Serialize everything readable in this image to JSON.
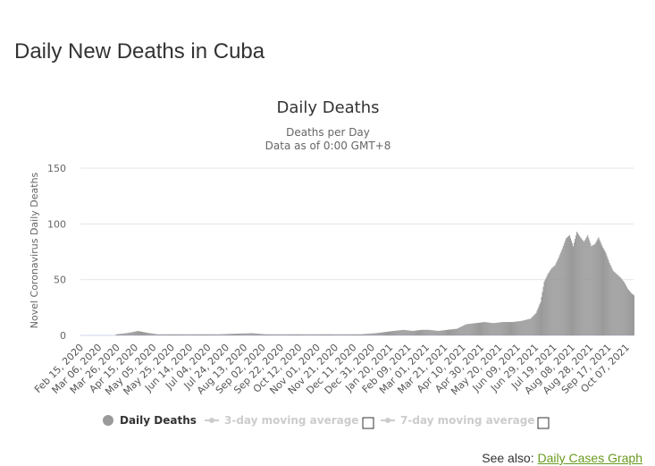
{
  "page": {
    "title": "Daily New Deaths in Cuba",
    "see_also_label": "See also:",
    "see_also_link": "Daily Cases Graph"
  },
  "chart_data": {
    "type": "bar",
    "title": "Daily Deaths",
    "subtitle_line1": "Deaths per Day",
    "subtitle_line2": "Data as of 0:00 GMT+8",
    "ylabel": "Novel Coronavirus Daily Deaths",
    "xlabel": "",
    "ylim": [
      0,
      150
    ],
    "yticks": [
      0,
      50,
      100,
      150
    ],
    "x_start": "2020-02-15",
    "x_end": "2021-10-17",
    "x_tick_labels": [
      "Feb 15, 2020",
      "Mar 06, 2020",
      "Mar 26, 2020",
      "Apr 15, 2020",
      "May 05, 2020",
      "May 25, 2020",
      "Jun 14, 2020",
      "Jul 04, 2020",
      "Jul 24, 2020",
      "Aug 13, 2020",
      "Sep 02, 2020",
      "Sep 22, 2020",
      "Oct 12, 2020",
      "Nov 01, 2020",
      "Nov 21, 2020",
      "Dec 11, 2020",
      "Dec 31, 2020",
      "Jan 20, 2021",
      "Feb 09, 2021",
      "Mar 01, 2021",
      "Mar 21, 2021",
      "Apr 10, 2021",
      "Apr 30, 2021",
      "May 20, 2021",
      "Jun 09, 2021",
      "Jun 29, 2021",
      "Jul 19, 2021",
      "Aug 08, 2021",
      "Aug 28, 2021",
      "Sep 17, 2021",
      "Oct 07, 2021"
    ],
    "grid": true,
    "legend_position": "bottom",
    "colors": {
      "bars": "#9a9a9a",
      "grid": "#e6e6e6",
      "legend_inactive": "#cccccc",
      "link": "#6a9a1f"
    },
    "series": [
      {
        "name": "Daily Deaths",
        "visible": true,
        "x": [
          "2020-03-25",
          "2020-04-05",
          "2020-04-12",
          "2020-04-18",
          "2020-04-24",
          "2020-05-01",
          "2020-05-10",
          "2020-07-15",
          "2020-08-22",
          "2020-09-05",
          "2020-10-10",
          "2020-12-08",
          "2020-12-20",
          "2021-01-05",
          "2021-01-15",
          "2021-01-25",
          "2021-02-05",
          "2021-02-15",
          "2021-02-25",
          "2021-03-05",
          "2021-03-15",
          "2021-03-25",
          "2021-04-05",
          "2021-04-15",
          "2021-04-25",
          "2021-05-05",
          "2021-05-15",
          "2021-05-25",
          "2021-06-05",
          "2021-06-15",
          "2021-06-25",
          "2021-07-01",
          "2021-07-06",
          "2021-07-10",
          "2021-07-14",
          "2021-07-18",
          "2021-07-22",
          "2021-07-26",
          "2021-07-30",
          "2021-08-03",
          "2021-08-07",
          "2021-08-11",
          "2021-08-15",
          "2021-08-19",
          "2021-08-23",
          "2021-08-27",
          "2021-08-31",
          "2021-09-04",
          "2021-09-08",
          "2021-09-12",
          "2021-09-16",
          "2021-09-20",
          "2021-09-24",
          "2021-09-28",
          "2021-10-02",
          "2021-10-06",
          "2021-10-10",
          "2021-10-14",
          "2021-10-17"
        ],
        "values": [
          1,
          2,
          3,
          4,
          3,
          2,
          1,
          1,
          2,
          1,
          1,
          1,
          1,
          2,
          3,
          4,
          5,
          4,
          5,
          5,
          4,
          5,
          6,
          10,
          11,
          12,
          11,
          12,
          12,
          13,
          15,
          20,
          30,
          48,
          55,
          60,
          63,
          70,
          78,
          87,
          90,
          80,
          93,
          88,
          84,
          90,
          80,
          82,
          88,
          80,
          74,
          65,
          58,
          55,
          52,
          48,
          42,
          38,
          36
        ]
      },
      {
        "name": "3-day moving average",
        "visible": false
      },
      {
        "name": "7-day moving average",
        "visible": false
      }
    ]
  }
}
